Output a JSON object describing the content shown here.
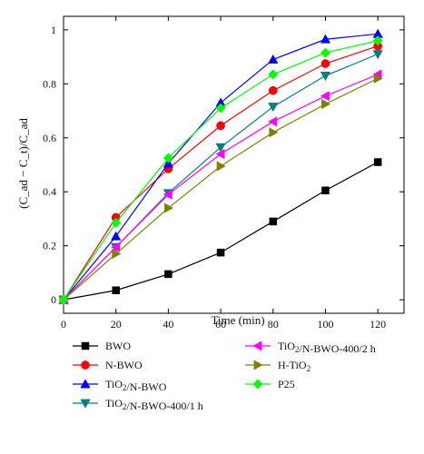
{
  "chart_data": {
    "type": "line",
    "title": "",
    "xlabel": "Time (min)",
    "ylabel": "(C_ad − C_t)/C_ad",
    "xlim": [
      0,
      130
    ],
    "ylim": [
      -0.05,
      1.05
    ],
    "grid": false,
    "legend_position": "bottom",
    "x_ticks": [
      "0",
      "20",
      "40",
      "60",
      "80",
      "100",
      "120"
    ],
    "y_ticks": [
      "0",
      "0.2",
      "0.4",
      "0.6",
      "0.8",
      "1"
    ],
    "x": [
      0,
      20,
      40,
      60,
      80,
      100,
      120
    ],
    "series": [
      {
        "name": "BWO",
        "color": "#000000",
        "marker": "square",
        "values": [
          0,
          0.035,
          0.095,
          0.175,
          0.29,
          0.405,
          0.51
        ]
      },
      {
        "name": "N-BWO",
        "color": "#ff0000",
        "marker": "circle",
        "values": [
          0,
          0.305,
          0.485,
          0.645,
          0.775,
          0.875,
          0.94
        ]
      },
      {
        "name": "TiO2/N-BWO",
        "color": "#0000ff",
        "marker": "triangle-up",
        "values": [
          0,
          0.235,
          0.505,
          0.73,
          0.89,
          0.965,
          0.985
        ]
      },
      {
        "name": "TiO2/N-BWO-400/1 h",
        "color": "#008080",
        "marker": "triangle-down",
        "values": [
          0,
          0.195,
          0.395,
          0.565,
          0.715,
          0.83,
          0.91
        ]
      },
      {
        "name": "TiO2/N-BWO-400/2 h",
        "color": "#ff00ff",
        "marker": "triangle-left",
        "values": [
          0,
          0.195,
          0.39,
          0.54,
          0.66,
          0.755,
          0.835
        ]
      },
      {
        "name": "H-TiO2",
        "color": "#808000",
        "marker": "triangle-right",
        "values": [
          0,
          0.17,
          0.34,
          0.495,
          0.62,
          0.725,
          0.82
        ]
      },
      {
        "name": "P25",
        "color": "#00ff00",
        "marker": "diamond",
        "values": [
          0,
          0.285,
          0.525,
          0.71,
          0.835,
          0.915,
          0.96
        ]
      }
    ]
  }
}
